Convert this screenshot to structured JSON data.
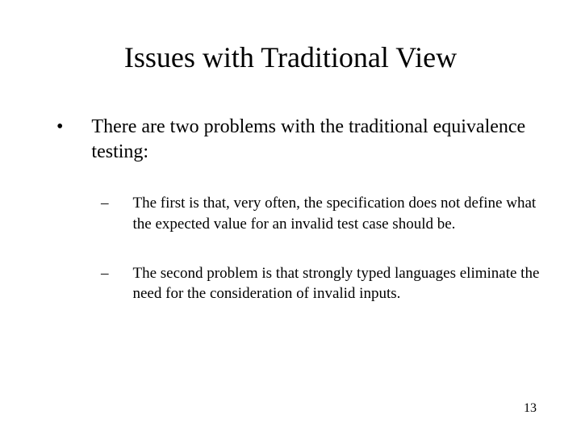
{
  "slide": {
    "title": "Issues with Traditional View",
    "main_bullet": {
      "marker": "•",
      "text": "There are two problems with the traditional equivalence testing:"
    },
    "sub_bullets": [
      {
        "marker": "–",
        "text": "The first is that, very often, the specification does not define what the expected value for an invalid test case should be."
      },
      {
        "marker": "–",
        "text": "The second problem is that strongly typed languages eliminate the need for the consideration of invalid inputs."
      }
    ],
    "page_number": "13"
  },
  "styling": {
    "background_color": "#ffffff",
    "text_color": "#000000",
    "title_fontsize": 36,
    "body_fontsize": 24,
    "sub_fontsize": 19,
    "page_number_fontsize": 16,
    "font_family": "Times New Roman"
  }
}
